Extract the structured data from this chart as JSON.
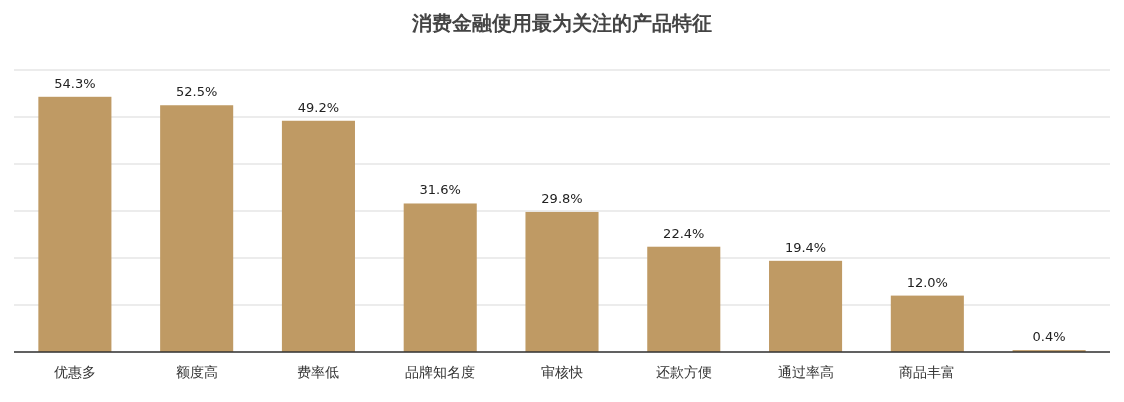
{
  "chart_data": {
    "type": "bar",
    "title": "消费金融使用最为关注的产品特征",
    "categories": [
      "优惠多",
      "额度高",
      "费率低",
      "品牌知名度",
      "审核快",
      "还款方便",
      "通过率高",
      "商品丰富",
      null
    ],
    "values": [
      54.3,
      52.5,
      49.2,
      31.6,
      29.8,
      22.4,
      19.4,
      12.0,
      0.4
    ],
    "value_labels": [
      "54.3%",
      "52.5%",
      "49.2%",
      "31.6%",
      "29.8%",
      "22.4%",
      "19.4%",
      "12.0%",
      "0.4%"
    ],
    "color": "#bf9a64",
    "ylim": [
      0,
      60
    ],
    "yticks": [
      {
        "value": 0,
        "label": null
      },
      {
        "value": 10,
        "label": null
      },
      {
        "value": 20,
        "label": null
      },
      {
        "value": 30,
        "label": null
      },
      {
        "value": 40,
        "label": null
      },
      {
        "value": 50,
        "label": null
      },
      {
        "value": 60,
        "label": null
      }
    ],
    "grid": "y",
    "tick_labels": "x"
  }
}
